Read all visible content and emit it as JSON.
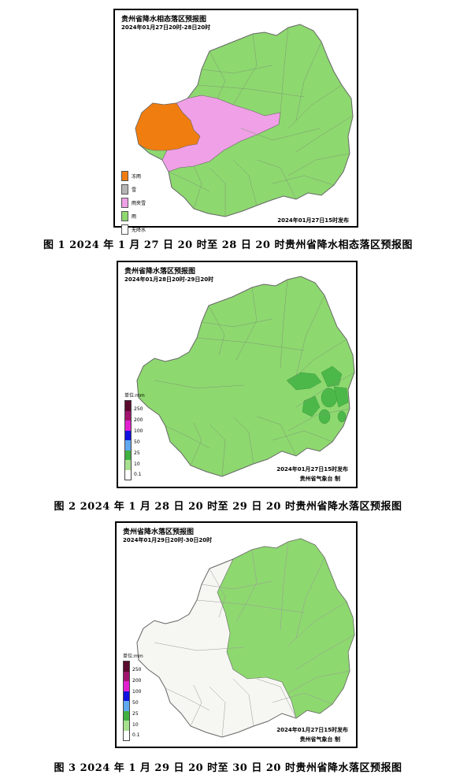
{
  "figures": [
    {
      "title": "贵州省降水相态落区预报图",
      "period": "2024年01月27日20时-28日20时",
      "issued": "2024年01月27日15时发布",
      "publisher": "",
      "caption": "图 1   2024 年 1 月 27 日 20 时至 28 日 20 时贵州省降水相态落区预报图",
      "legend": [
        {
          "label": "冻雨",
          "color": "#f07d10"
        },
        {
          "label": "雪",
          "color": "#b5b5b5"
        },
        {
          "label": "雨夹雪",
          "color": "#f0a0e6"
        },
        {
          "label": "雨",
          "color": "#8ed870"
        },
        {
          "label": "无降水",
          "color": "#ffffff"
        }
      ]
    },
    {
      "title": "贵州省降水落区预报图",
      "period": "2024年01月28日20时-29日20时",
      "issued": "2024年01月27日15时发布",
      "publisher": "贵州省气象台 制",
      "caption": "图 2   2024 年 1 月 28 日 20 时至 29 日 20 时贵州省降水落区预报图",
      "scale_unit": "单位:mm",
      "scale_labels": [
        "250",
        "200",
        "100",
        "50",
        "25",
        "10",
        "0.1"
      ],
      "scale_colors": [
        "#5a0a2e",
        "#a0146e",
        "#e020d0",
        "#1010e0",
        "#60a8f0",
        "#40b040",
        "#a8e090",
        "#ffffff"
      ]
    },
    {
      "title": "贵州省降水落区预报图",
      "period": "2024年01月29日20时-30日20时",
      "issued": "2024年01月27日15时发布",
      "publisher": "贵州省气象台 制",
      "caption": "图 3   2024 年 1 月 29 日 20 时至 30 日 20 时贵州省降水落区预报图",
      "scale_unit": "单位:mm",
      "scale_labels": [
        "250",
        "200",
        "100",
        "50",
        "25",
        "10",
        "0.1"
      ],
      "scale_colors": [
        "#5a0a2e",
        "#a0146e",
        "#e020d0",
        "#1010e0",
        "#60a8f0",
        "#40b040",
        "#a8e090",
        "#ffffff"
      ]
    }
  ],
  "colors": {
    "rain": "#8ed870",
    "rain_dark": "#4cb84a",
    "freezing_rain": "#f07d10",
    "sleet": "#f0a0e6",
    "none": "#f6f7f2",
    "boundary": "#777777"
  }
}
